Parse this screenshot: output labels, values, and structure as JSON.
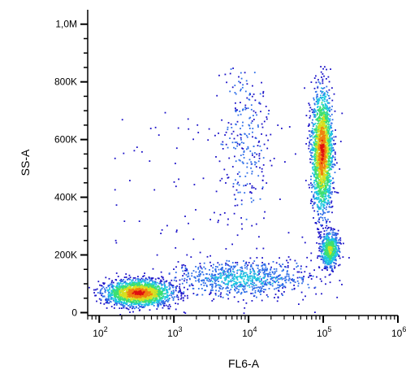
{
  "chart_data": {
    "type": "scatter",
    "style": "flow-cytometry density dot plot (pseudocolor)",
    "xlabel": "FL6-A",
    "ylabel": "SS-A",
    "x_scale": "log",
    "xlim": [
      70,
      1000000
    ],
    "ylim": [
      -10000,
      1050000
    ],
    "y_ticks": [
      {
        "value": 0,
        "label": "0"
      },
      {
        "value": 200000,
        "label": "200K"
      },
      {
        "value": 400000,
        "label": "400K"
      },
      {
        "value": 600000,
        "label": "600K"
      },
      {
        "value": 800000,
        "label": "800K"
      },
      {
        "value": 1000000,
        "label": "1,0M"
      }
    ],
    "x_ticks": [
      {
        "value": 100,
        "base": "10",
        "exp": "2"
      },
      {
        "value": 1000,
        "base": "10",
        "exp": "3"
      },
      {
        "value": 10000,
        "base": "10",
        "exp": "4"
      },
      {
        "value": 100000,
        "base": "10",
        "exp": "5"
      },
      {
        "value": 1000000,
        "base": "10",
        "exp": "6"
      }
    ],
    "density_colors": [
      "#1a10c8",
      "#2e6ee8",
      "#1cc8e0",
      "#3ee070",
      "#d8e020",
      "#f08010",
      "#e01010"
    ],
    "populations": [
      {
        "name": "",
        "center_x": 330,
        "center_y": 70000,
        "spread_log_x": 0.22,
        "spread_y": 22000,
        "count": 1900,
        "peak": "red"
      },
      {
        "name": "",
        "center_x": 95000,
        "center_y": 560000,
        "spread_log_x": 0.07,
        "spread_y": 105000,
        "count": 1900,
        "peak": "red"
      },
      {
        "name": "",
        "center_x": 120000,
        "center_y": 220000,
        "spread_log_x": 0.06,
        "spread_y": 30000,
        "count": 650,
        "peak": "yellow"
      },
      {
        "name": "",
        "center_x": 8000,
        "center_y": 120000,
        "spread_log_x": 0.45,
        "spread_y": 30000,
        "count": 800,
        "peak": "cyan"
      },
      {
        "name": "",
        "center_x": 9000,
        "center_y": 600000,
        "spread_log_x": 0.16,
        "spread_y": 150000,
        "count": 260,
        "peak": "blue"
      }
    ]
  }
}
